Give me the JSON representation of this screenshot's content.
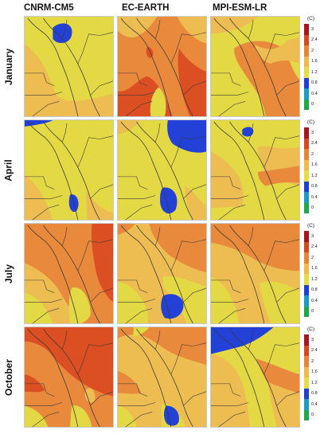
{
  "models": [
    "CNRM-CM5",
    "EC-EARTH",
    "MPI-ESM-LR"
  ],
  "months": [
    "January",
    "April",
    "July",
    "October"
  ],
  "legend": {
    "unit": "(C)",
    "ticks": [
      "3",
      "2.4",
      "2",
      "1.6",
      "1.2",
      "0.8",
      "0.4",
      "0"
    ],
    "colors": [
      "#a8151a",
      "#d9471f",
      "#e8843a",
      "#f0b84e",
      "#e6dc48",
      "#1f3fd0",
      "#1a9cc6",
      "#1fa84a"
    ]
  },
  "palette": {
    "yellow": "#e3d944",
    "light_orange": "#eebd52",
    "orange": "#e8893c",
    "dark_orange": "#dc4f22",
    "blue": "#2341d6",
    "coast": "#3a3a3a"
  },
  "panels": [
    {
      "month": "January",
      "model": "CNRM-CM5",
      "base": "yellow",
      "features": [
        {
          "class": "light_orange",
          "level": "1.6-2"
        },
        {
          "class": "blue",
          "level": "0.8-1.2"
        }
      ]
    },
    {
      "month": "January",
      "model": "EC-EARTH",
      "base": "orange",
      "features": [
        {
          "class": "dark_orange",
          "level": "2.4-3"
        },
        {
          "class": "light_orange",
          "level": "1.6-2"
        },
        {
          "class": "yellow",
          "level": "1.2-1.6"
        }
      ]
    },
    {
      "month": "January",
      "model": "MPI-ESM-LR",
      "base": "yellow",
      "features": [
        {
          "class": "orange",
          "level": "2-2.4"
        },
        {
          "class": "light_orange",
          "level": "1.6-2"
        }
      ]
    },
    {
      "month": "April",
      "model": "CNRM-CM5",
      "base": "yellow",
      "features": [
        {
          "class": "blue",
          "level": "0.8-1.2"
        },
        {
          "class": "light_orange",
          "level": "1.6-2"
        }
      ]
    },
    {
      "month": "April",
      "model": "EC-EARTH",
      "base": "yellow",
      "features": [
        {
          "class": "blue",
          "level": "0.8-1.2"
        },
        {
          "class": "light_orange",
          "level": "1.6-2"
        }
      ]
    },
    {
      "month": "April",
      "model": "MPI-ESM-LR",
      "base": "yellow",
      "features": [
        {
          "class": "blue",
          "level": "0.8-1.2"
        },
        {
          "class": "light_orange",
          "level": "1.6-2"
        },
        {
          "class": "orange",
          "level": "2-2.4"
        }
      ]
    },
    {
      "month": "July",
      "model": "CNRM-CM5",
      "base": "light_orange",
      "features": [
        {
          "class": "orange",
          "level": "2-2.4"
        },
        {
          "class": "dark_orange",
          "level": "2.4-3"
        },
        {
          "class": "yellow",
          "level": "1.2-1.6"
        }
      ]
    },
    {
      "month": "July",
      "model": "EC-EARTH",
      "base": "light_orange",
      "features": [
        {
          "class": "orange",
          "level": "2-2.4"
        },
        {
          "class": "yellow",
          "level": "1.2-1.6"
        },
        {
          "class": "blue",
          "level": "0.8-1.2"
        }
      ]
    },
    {
      "month": "July",
      "model": "MPI-ESM-LR",
      "base": "light_orange",
      "features": [
        {
          "class": "orange",
          "level": "2-2.4"
        },
        {
          "class": "yellow",
          "level": "1.2-1.6"
        }
      ]
    },
    {
      "month": "October",
      "model": "CNRM-CM5",
      "base": "orange",
      "features": [
        {
          "class": "dark_orange",
          "level": "2.4-3"
        },
        {
          "class": "light_orange",
          "level": "1.6-2"
        },
        {
          "class": "yellow",
          "level": "1.2-1.6"
        }
      ]
    },
    {
      "month": "October",
      "model": "EC-EARTH",
      "base": "light_orange",
      "features": [
        {
          "class": "orange",
          "level": "2-2.4"
        },
        {
          "class": "yellow",
          "level": "1.2-1.6"
        },
        {
          "class": "blue",
          "level": "0.8-1.2"
        }
      ]
    },
    {
      "month": "October",
      "model": "MPI-ESM-LR",
      "base": "yellow",
      "features": [
        {
          "class": "blue",
          "level": "0.8-1.2"
        },
        {
          "class": "light_orange",
          "level": "1.6-2"
        },
        {
          "class": "orange",
          "level": "2-2.4"
        }
      ]
    }
  ]
}
